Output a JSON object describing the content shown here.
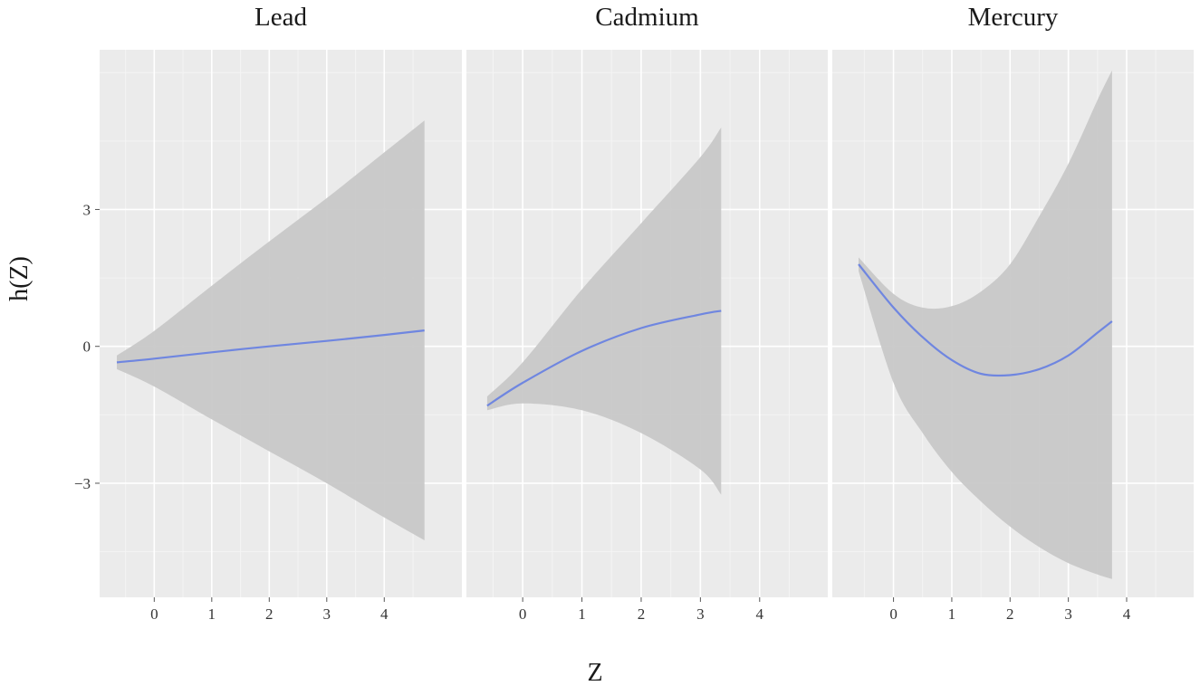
{
  "chart_data": {
    "type": "line",
    "xlabel": "Z",
    "ylabel": "h(Z)",
    "ylim": [
      -5.5,
      6.5
    ],
    "y_ticks": [
      -3,
      0,
      3
    ],
    "y_tick_labels": [
      "−3",
      "0",
      "3"
    ],
    "x_ticks": [
      0,
      1,
      2,
      3,
      4
    ],
    "x_tick_labels": [
      "0",
      "1",
      "2",
      "3",
      "4"
    ],
    "grid": true,
    "legend": "none",
    "colors": {
      "panel_bg": "#ebebeb",
      "grid_major": "#ffffff",
      "grid_minor": "#f4f4f4",
      "ribbon": "#c8c8c8",
      "line": "#6f86e0"
    },
    "panels": [
      {
        "name": "Lead",
        "xlim": [
          -0.95,
          5.35
        ],
        "x": [
          -0.65,
          0,
          1,
          2,
          3,
          4,
          4.7
        ],
        "y": [
          -0.35,
          -0.27,
          -0.13,
          0.0,
          0.12,
          0.25,
          0.35
        ],
        "lower": [
          -0.5,
          -0.88,
          -1.6,
          -2.3,
          -3.0,
          -3.75,
          -4.25
        ],
        "upper": [
          -0.2,
          0.34,
          1.33,
          2.3,
          3.25,
          4.25,
          4.95
        ]
      },
      {
        "name": "Cadmium",
        "xlim": [
          -0.95,
          5.15
        ],
        "x": [
          -0.6,
          0,
          1,
          2,
          3,
          3.35
        ],
        "y": [
          -1.3,
          -0.8,
          -0.1,
          0.4,
          0.7,
          0.78
        ],
        "lower": [
          -1.4,
          -1.25,
          -1.4,
          -1.9,
          -2.7,
          -3.25
        ],
        "upper": [
          -1.1,
          -0.35,
          1.25,
          2.7,
          4.15,
          4.8
        ]
      },
      {
        "name": "Mercury",
        "xlim": [
          -1.05,
          5.15
        ],
        "x": [
          -0.6,
          0,
          0.5,
          1,
          1.5,
          2,
          2.5,
          3,
          3.5,
          3.75
        ],
        "y": [
          1.8,
          0.85,
          0.2,
          -0.3,
          -0.6,
          -0.63,
          -0.5,
          -0.2,
          0.3,
          0.55
        ],
        "lower": [
          1.65,
          -0.8,
          -1.9,
          -2.75,
          -3.4,
          -3.95,
          -4.4,
          -4.75,
          -5.0,
          -5.1
        ],
        "upper": [
          1.95,
          1.15,
          0.85,
          0.88,
          1.2,
          1.8,
          2.85,
          4.0,
          5.4,
          6.05
        ]
      }
    ]
  }
}
